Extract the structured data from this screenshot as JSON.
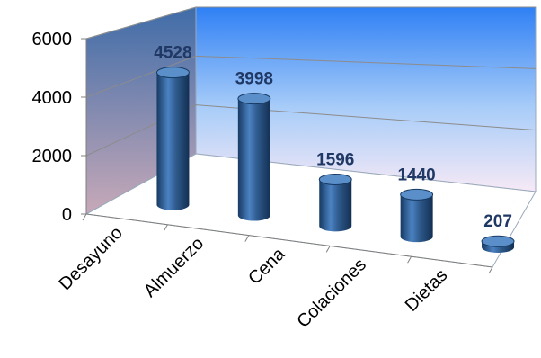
{
  "chart_data": {
    "type": "bar",
    "style": "3d-cylinder",
    "categories": [
      "Desayuno",
      "Almuerzo",
      "Cena",
      "Colaciones",
      "Dietas"
    ],
    "values": [
      4528,
      3998,
      1596,
      1440,
      207
    ],
    "ytick_labels": [
      "0",
      "2000",
      "4000",
      "6000"
    ],
    "ylim": [
      0,
      6000
    ],
    "grid": true,
    "legend": "none",
    "colors": {
      "bar": "#2e5a8c",
      "bar_highlight": "#5b8fc9",
      "bar_shadow": "#173a63",
      "data_label": "#1f3864",
      "wall_top": "#2f80f5",
      "wall_bottom": "#f6e9f6"
    }
  }
}
